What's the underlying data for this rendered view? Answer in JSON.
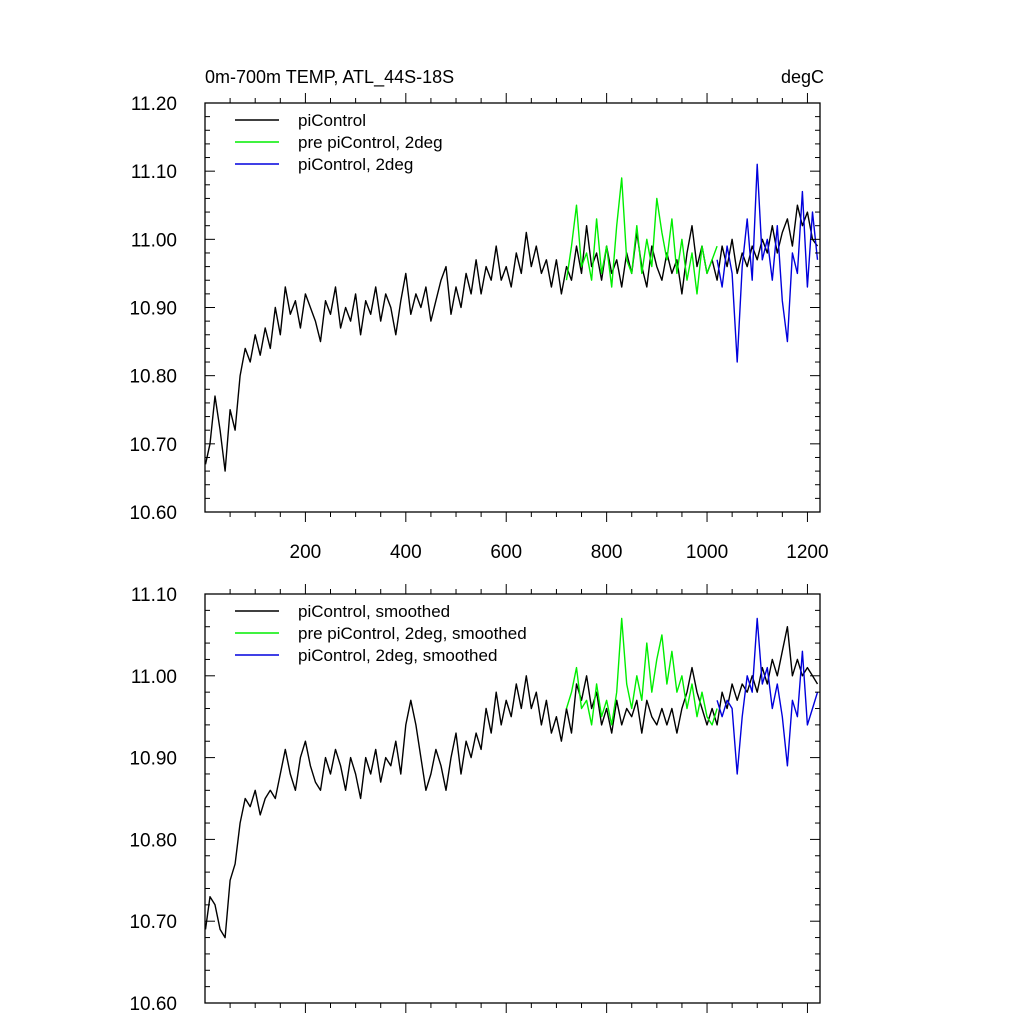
{
  "figure": {
    "title_left": "0m-700m TEMP, ATL_44S-18S",
    "title_right": "degC"
  },
  "chart_data": [
    {
      "type": "line",
      "title": "0m-700m TEMP, ATL_44S-18S",
      "units": "degC",
      "xlim": [
        0,
        1225
      ],
      "ylim": [
        10.6,
        11.2
      ],
      "x_ticks": [
        200,
        400,
        600,
        800,
        1000,
        1200
      ],
      "x_tick_labels": [
        "200",
        "400",
        "600",
        "800",
        "1000",
        "1200"
      ],
      "y_ticks": [
        10.6,
        10.7,
        10.8,
        10.9,
        11.0,
        11.1,
        11.2
      ],
      "y_tick_labels": [
        "10.60",
        "10.70",
        "10.80",
        "10.90",
        "11.00",
        "11.10",
        "11.20"
      ],
      "series": [
        {
          "name": "piControl",
          "color": "#000000",
          "x": [
            1,
            10,
            20,
            30,
            40,
            50,
            60,
            70,
            80,
            90,
            100,
            110,
            120,
            130,
            140,
            150,
            160,
            170,
            180,
            190,
            200,
            210,
            220,
            230,
            240,
            250,
            260,
            270,
            280,
            290,
            300,
            310,
            320,
            330,
            340,
            350,
            360,
            370,
            380,
            390,
            400,
            410,
            420,
            430,
            440,
            450,
            460,
            470,
            480,
            490,
            500,
            510,
            520,
            530,
            540,
            550,
            560,
            570,
            580,
            590,
            600,
            610,
            620,
            630,
            640,
            650,
            660,
            670,
            680,
            690,
            700,
            710,
            720,
            730,
            740,
            750,
            760,
            770,
            780,
            790,
            800,
            810,
            820,
            830,
            840,
            850,
            860,
            870,
            880,
            890,
            900,
            910,
            920,
            930,
            940,
            950,
            960,
            970,
            980,
            990,
            1000,
            1010,
            1020,
            1030,
            1040,
            1050,
            1060,
            1070,
            1080,
            1090,
            1100,
            1110,
            1120,
            1130,
            1140,
            1150,
            1160,
            1170,
            1180,
            1190,
            1200,
            1210,
            1220
          ],
          "values": [
            10.67,
            10.7,
            10.77,
            10.72,
            10.66,
            10.75,
            10.72,
            10.8,
            10.84,
            10.82,
            10.86,
            10.83,
            10.87,
            10.84,
            10.9,
            10.86,
            10.93,
            10.89,
            10.91,
            10.87,
            10.92,
            10.9,
            10.88,
            10.85,
            10.91,
            10.89,
            10.93,
            10.87,
            10.9,
            10.88,
            10.92,
            10.86,
            10.91,
            10.89,
            10.93,
            10.88,
            10.92,
            10.9,
            10.86,
            10.91,
            10.95,
            10.89,
            10.92,
            10.9,
            10.93,
            10.88,
            10.91,
            10.94,
            10.96,
            10.89,
            10.93,
            10.9,
            10.95,
            10.92,
            10.97,
            10.92,
            10.96,
            10.94,
            10.99,
            10.94,
            10.96,
            10.93,
            10.98,
            10.95,
            11.01,
            10.96,
            10.99,
            10.95,
            10.97,
            10.93,
            10.97,
            10.92,
            10.96,
            10.94,
            10.99,
            10.95,
            11.02,
            10.96,
            10.98,
            10.94,
            10.99,
            10.95,
            10.97,
            10.93,
            10.98,
            10.95,
            11.01,
            10.96,
            10.93,
            10.99,
            10.96,
            10.94,
            10.98,
            10.95,
            10.97,
            10.92,
            10.98,
            11.02,
            10.96,
            10.99,
            10.95,
            10.97,
            10.94,
            10.99,
            10.96,
            11.0,
            10.95,
            10.98,
            10.96,
            10.99,
            10.97,
            11.0,
            10.98,
            11.02,
            10.98,
            11.01,
            11.03,
            10.99,
            11.05,
            11.02,
            11.04,
            11.0,
            10.99
          ]
        },
        {
          "name": "pre piControl, 2deg",
          "color": "#00ee00",
          "x": [
            720,
            730,
            740,
            750,
            760,
            770,
            780,
            790,
            800,
            810,
            820,
            830,
            840,
            850,
            860,
            870,
            880,
            890,
            900,
            910,
            920,
            930,
            940,
            950,
            960,
            970,
            980,
            990,
            1000,
            1010,
            1020
          ],
          "values": [
            10.94,
            10.99,
            11.05,
            10.96,
            10.98,
            10.94,
            11.03,
            10.95,
            10.99,
            10.93,
            11.02,
            11.09,
            10.97,
            10.95,
            11.02,
            10.95,
            11.0,
            10.96,
            11.06,
            11.01,
            10.97,
            11.03,
            10.95,
            11.0,
            10.94,
            10.98,
            10.92,
            10.99,
            10.95,
            10.97,
            10.99
          ]
        },
        {
          "name": "piControl, 2deg",
          "color": "#0000dd",
          "x": [
            1020,
            1030,
            1040,
            1050,
            1060,
            1070,
            1080,
            1090,
            1100,
            1110,
            1120,
            1130,
            1140,
            1150,
            1160,
            1170,
            1180,
            1190,
            1200,
            1210,
            1220
          ],
          "values": [
            10.97,
            10.93,
            10.99,
            10.95,
            10.82,
            10.96,
            11.03,
            10.94,
            11.11,
            10.97,
            11.0,
            10.94,
            11.02,
            10.91,
            10.85,
            10.98,
            10.95,
            11.07,
            10.93,
            11.04,
            10.97
          ]
        }
      ],
      "legend": [
        "piControl",
        "pre piControl, 2deg",
        "piControl, 2deg"
      ],
      "legend_position": "top-left"
    },
    {
      "type": "line",
      "xlim": [
        0,
        1225
      ],
      "ylim": [
        10.6,
        11.1
      ],
      "x_ticks": [
        200,
        400,
        600,
        800,
        1000,
        1200
      ],
      "y_ticks": [
        10.6,
        10.7,
        10.8,
        10.9,
        11.0,
        11.1
      ],
      "y_tick_labels": [
        "10.60",
        "10.70",
        "10.80",
        "10.90",
        "11.00",
        "11.10"
      ],
      "series": [
        {
          "name": "piControl, smoothed",
          "color": "#000000",
          "x": [
            1,
            10,
            20,
            30,
            40,
            50,
            60,
            70,
            80,
            90,
            100,
            110,
            120,
            130,
            140,
            150,
            160,
            170,
            180,
            190,
            200,
            210,
            220,
            230,
            240,
            250,
            260,
            270,
            280,
            290,
            300,
            310,
            320,
            330,
            340,
            350,
            360,
            370,
            380,
            390,
            400,
            410,
            420,
            430,
            440,
            450,
            460,
            470,
            480,
            490,
            500,
            510,
            520,
            530,
            540,
            550,
            560,
            570,
            580,
            590,
            600,
            610,
            620,
            630,
            640,
            650,
            660,
            670,
            680,
            690,
            700,
            710,
            720,
            730,
            740,
            750,
            760,
            770,
            780,
            790,
            800,
            810,
            820,
            830,
            840,
            850,
            860,
            870,
            880,
            890,
            900,
            910,
            920,
            930,
            940,
            950,
            960,
            970,
            980,
            990,
            1000,
            1010,
            1020,
            1030,
            1040,
            1050,
            1060,
            1070,
            1080,
            1090,
            1100,
            1110,
            1120,
            1130,
            1140,
            1150,
            1160,
            1170,
            1180,
            1190,
            1200,
            1210,
            1220
          ],
          "values": [
            10.69,
            10.73,
            10.72,
            10.69,
            10.68,
            10.75,
            10.77,
            10.82,
            10.85,
            10.84,
            10.86,
            10.83,
            10.85,
            10.86,
            10.85,
            10.88,
            10.91,
            10.88,
            10.86,
            10.9,
            10.92,
            10.89,
            10.87,
            10.86,
            10.9,
            10.88,
            10.91,
            10.89,
            10.86,
            10.9,
            10.88,
            10.85,
            10.9,
            10.88,
            10.91,
            10.87,
            10.9,
            10.89,
            10.92,
            10.88,
            10.94,
            10.97,
            10.94,
            10.9,
            10.86,
            10.88,
            10.91,
            10.89,
            10.86,
            10.9,
            10.93,
            10.88,
            10.92,
            10.9,
            10.93,
            10.91,
            10.96,
            10.93,
            10.98,
            10.94,
            10.97,
            10.95,
            10.99,
            10.96,
            11.0,
            10.96,
            10.98,
            10.94,
            10.97,
            10.93,
            10.95,
            10.92,
            10.96,
            10.93,
            10.99,
            10.97,
            11.0,
            10.96,
            10.98,
            10.94,
            10.96,
            10.93,
            10.97,
            10.94,
            10.96,
            10.95,
            10.97,
            10.93,
            10.97,
            10.95,
            10.94,
            10.96,
            10.94,
            10.96,
            10.93,
            10.96,
            10.98,
            11.01,
            10.98,
            10.96,
            10.94,
            10.96,
            10.94,
            10.98,
            10.96,
            10.99,
            10.97,
            10.99,
            10.98,
            11.0,
            10.98,
            11.01,
            10.99,
            11.02,
            11.0,
            11.03,
            11.06,
            11.0,
            11.02,
            11.0,
            11.01,
            11.0,
            10.99
          ]
        },
        {
          "name": "pre piControl, 2deg, smoothed",
          "color": "#00ee00",
          "x": [
            720,
            730,
            740,
            750,
            760,
            770,
            780,
            790,
            800,
            810,
            820,
            830,
            840,
            850,
            860,
            870,
            880,
            890,
            900,
            910,
            920,
            930,
            940,
            950,
            960,
            970,
            980,
            990,
            1000,
            1010,
            1020
          ],
          "values": [
            10.96,
            10.98,
            11.01,
            10.96,
            10.97,
            10.94,
            10.99,
            10.95,
            10.97,
            10.94,
            10.98,
            11.07,
            10.99,
            10.96,
            11.0,
            10.97,
            11.04,
            10.98,
            11.02,
            11.05,
            10.99,
            11.03,
            10.98,
            11.0,
            10.96,
            10.99,
            10.95,
            10.98,
            10.95,
            10.94,
            10.96
          ]
        },
        {
          "name": "piControl, 2deg, smoothed",
          "color": "#0000dd",
          "x": [
            1020,
            1030,
            1040,
            1050,
            1060,
            1070,
            1080,
            1090,
            1100,
            1110,
            1120,
            1130,
            1140,
            1150,
            1160,
            1170,
            1180,
            1190,
            1200,
            1210,
            1220
          ],
          "values": [
            10.97,
            10.95,
            10.97,
            10.96,
            10.88,
            10.95,
            11.0,
            10.98,
            11.07,
            10.99,
            11.01,
            10.96,
            10.99,
            10.95,
            10.89,
            10.97,
            10.95,
            11.03,
            10.94,
            10.96,
            10.98
          ]
        }
      ],
      "legend": [
        "piControl, smoothed",
        "pre piControl, 2deg, smoothed",
        "piControl, 2deg, smoothed"
      ],
      "legend_position": "top-left"
    }
  ]
}
